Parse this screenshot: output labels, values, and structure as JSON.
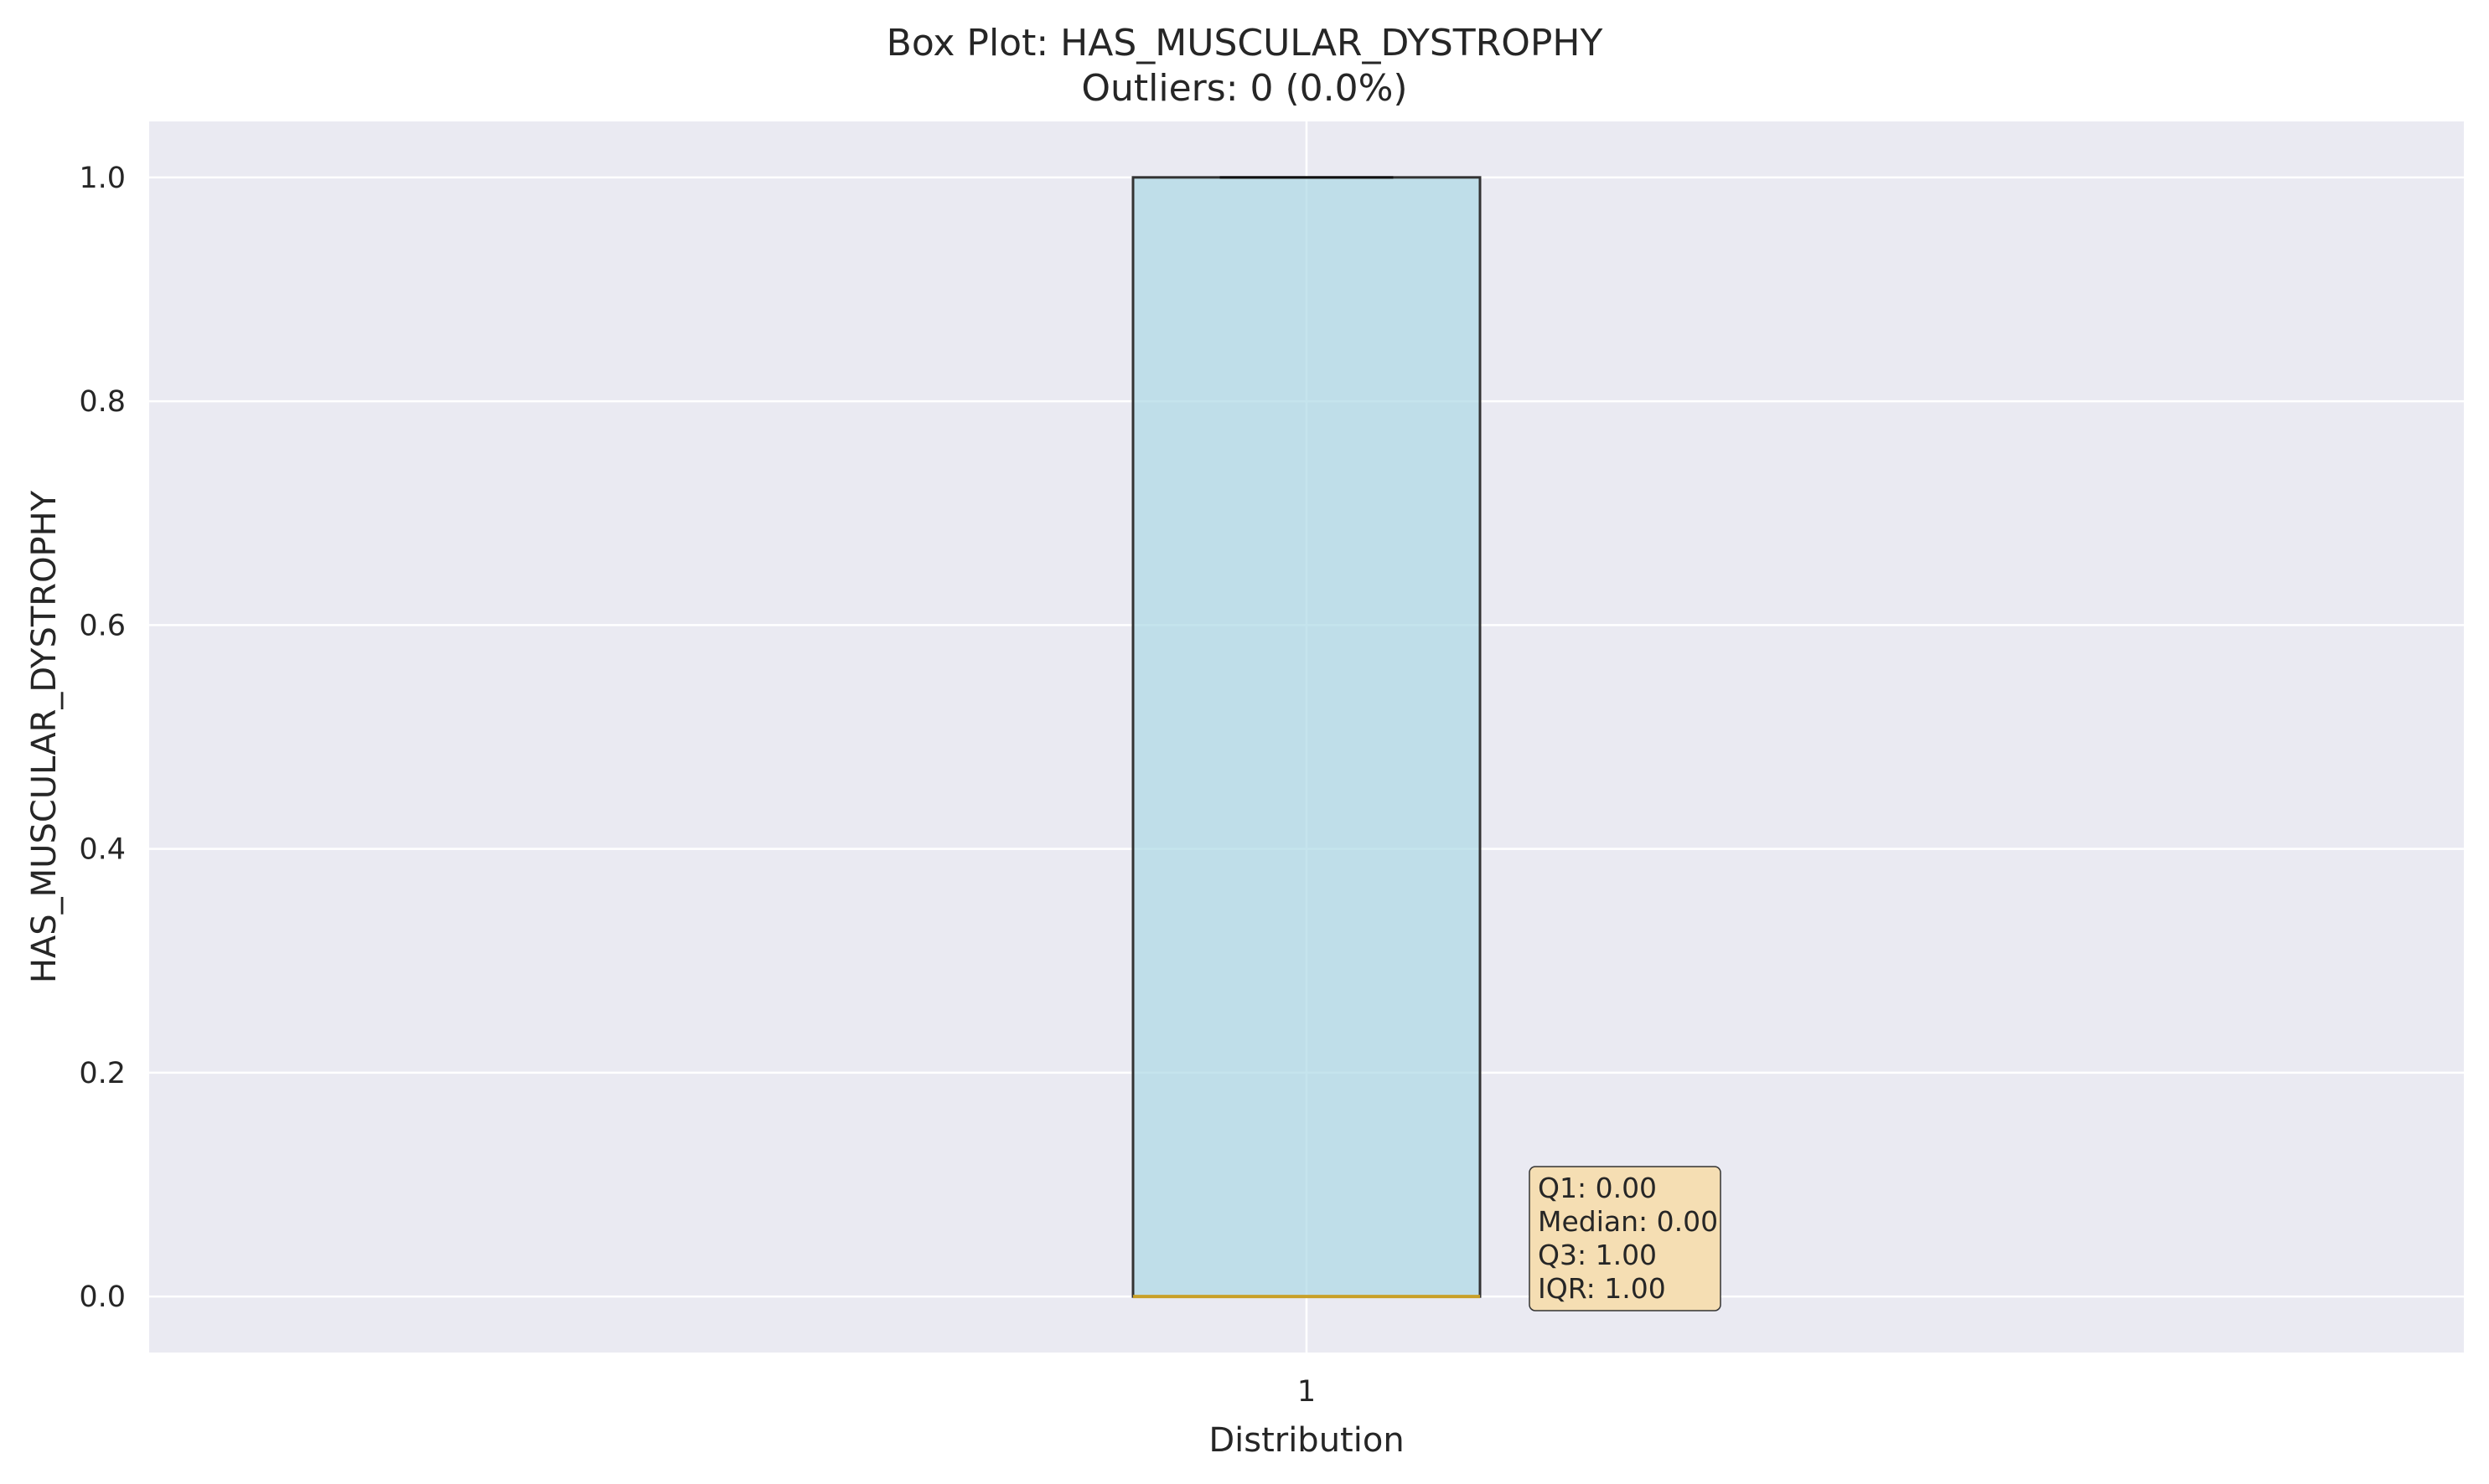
{
  "chart_data": {
    "type": "box",
    "title": "Box Plot: HAS_MUSCULAR_DYSTROPHY",
    "subtitle": "Outliers: 0 (0.0%)",
    "xlabel": "Distribution",
    "ylabel": "HAS_MUSCULAR_DYSTROPHY",
    "categories": [
      "1"
    ],
    "ylim": [
      -0.05,
      1.05
    ],
    "y_ticks": [
      "0.0",
      "0.2",
      "0.4",
      "0.6",
      "0.8",
      "1.0"
    ],
    "grid": true,
    "box": {
      "whisker_low": 0.0,
      "q1": 0.0,
      "median": 0.0,
      "q3": 1.0,
      "whisker_high": 1.0
    },
    "stats_box": [
      "Q1: 0.00",
      "Median: 0.00",
      "Q3: 1.00",
      "IQR: 1.00"
    ],
    "colors": {
      "background": "#eaeaf2",
      "grid": "#ffffff",
      "box_fill": "#add8e6",
      "box_edge": "#333333",
      "median": "#c8a028",
      "stats_fill": "#f5deb3"
    }
  }
}
